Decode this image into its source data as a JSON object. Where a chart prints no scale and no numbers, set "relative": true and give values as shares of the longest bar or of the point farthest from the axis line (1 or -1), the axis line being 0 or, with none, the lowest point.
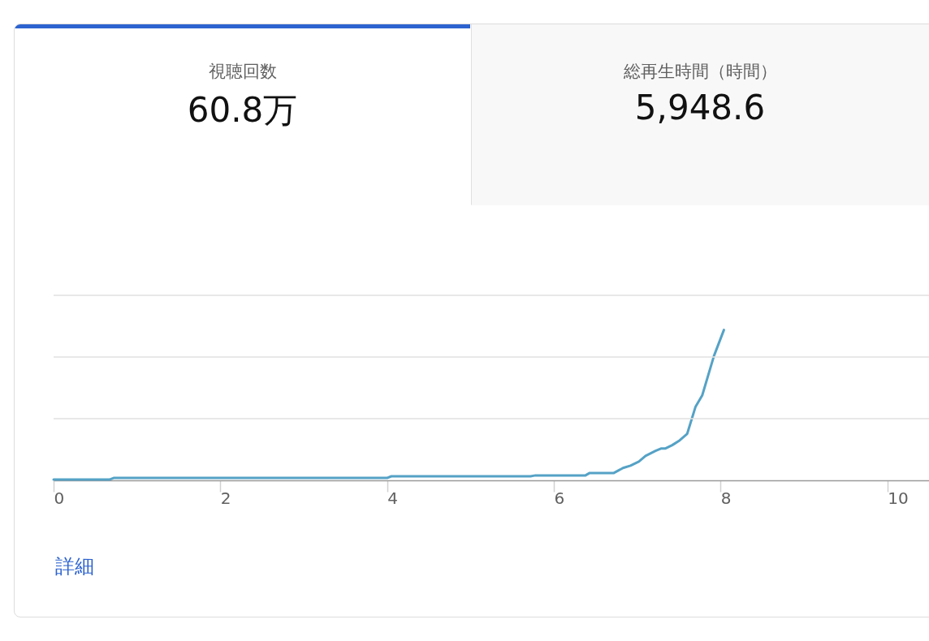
{
  "chart_data": {
    "type": "line",
    "relative": true,
    "annotations": [
      "視聴回数",
      "60.8万",
      "総再生時間（時間）",
      "5,948.6",
      "詳細"
    ],
    "series": [
      {
        "color": "#55a2c6",
        "x": [
          0,
          0.67,
          0.72,
          4.0,
          4.05,
          5.72,
          5.78,
          6.38,
          6.43,
          6.72,
          6.83,
          6.92,
          7.02,
          7.1,
          7.22,
          7.29,
          7.34,
          7.42,
          7.51,
          7.6,
          7.7,
          7.78,
          7.92,
          8.04
        ],
        "values": [
          0.005,
          0.005,
          0.016,
          0.016,
          0.027,
          0.027,
          0.033,
          0.033,
          0.049,
          0.049,
          0.082,
          0.098,
          0.125,
          0.163,
          0.196,
          0.212,
          0.212,
          0.234,
          0.266,
          0.31,
          0.49,
          0.565,
          0.826,
          1
        ]
      }
    ],
    "xlim": [
      0,
      10.5
    ],
    "xticks": [
      0,
      2,
      4,
      6,
      8,
      10
    ],
    "ref_lines": [
      {
        "axis": "y",
        "value": 0.41,
        "color": "#e0e0e0"
      },
      {
        "axis": "y",
        "value": 0.82,
        "color": "#e0e0e0"
      },
      {
        "axis": "y",
        "value": 1.23,
        "color": "#e0e0e0"
      }
    ],
    "tick_labels": "x",
    "marker": "none",
    "line_style": "solid"
  }
}
